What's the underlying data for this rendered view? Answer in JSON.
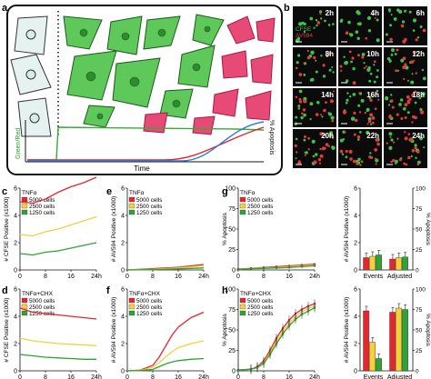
{
  "figure": {
    "panel_letters": {
      "a": "a",
      "b": "b",
      "c": "c",
      "d": "d",
      "e": "e",
      "f": "f",
      "g": "g",
      "h": "h"
    },
    "panel_a": {
      "y_left_label": "Green/Red",
      "y_right_label": "% Apoptosis",
      "x_label": "Time"
    },
    "panel_b": {
      "times": [
        "2h",
        "4h",
        "6h",
        "8h",
        "10h",
        "12h",
        "14h",
        "16h",
        "18h",
        "20h",
        "22h",
        "24h"
      ],
      "channel_labels": [
        "CFSE",
        "AV594"
      ]
    }
  },
  "chart_data": [
    {
      "id": "c",
      "type": "line",
      "treatment": "TNFα",
      "ylabel": "# CFSE Positive (x1000)",
      "xticks": [
        "0",
        "8",
        "16",
        "24h"
      ],
      "yticks": [
        "0",
        "2",
        "4",
        "6"
      ],
      "ylim": [
        0,
        6
      ],
      "xlim": [
        0,
        24
      ],
      "legend": [
        "5000 cells",
        "2500 cells",
        "1250 cells"
      ],
      "series": [
        {
          "name": "5000 cells",
          "color": "#e6262f",
          "points": [
            [
              0,
              5.0
            ],
            [
              4,
              4.9
            ],
            [
              8,
              5.2
            ],
            [
              12,
              5.7
            ],
            [
              16,
              6.1
            ],
            [
              20,
              6.4
            ],
            [
              24,
              6.8
            ]
          ]
        },
        {
          "name": "2500 cells",
          "color": "#f4d03a",
          "points": [
            [
              0,
              2.6
            ],
            [
              4,
              2.5
            ],
            [
              8,
              2.8
            ],
            [
              12,
              3.0
            ],
            [
              16,
              3.3
            ],
            [
              20,
              3.6
            ],
            [
              24,
              3.9
            ]
          ]
        },
        {
          "name": "1250 cells",
          "color": "#2fa336",
          "points": [
            [
              0,
              1.2
            ],
            [
              4,
              1.1
            ],
            [
              8,
              1.3
            ],
            [
              12,
              1.4
            ],
            [
              16,
              1.6
            ],
            [
              20,
              1.8
            ],
            [
              24,
              2.0
            ]
          ]
        }
      ]
    },
    {
      "id": "e",
      "type": "line",
      "treatment": "TNFα",
      "ylabel": "# AV594 Positive (x1000)",
      "xticks": [
        "0",
        "8",
        "16",
        "24h"
      ],
      "yticks": [
        "0",
        "2",
        "4",
        "6"
      ],
      "ylim": [
        0,
        6
      ],
      "xlim": [
        0,
        24
      ],
      "legend": [
        "5000 cells",
        "2500 cells",
        "1250 cells"
      ],
      "series": [
        {
          "name": "5000 cells",
          "color": "#e6262f",
          "points": [
            [
              0,
              0.0
            ],
            [
              8,
              0.1
            ],
            [
              16,
              0.2
            ],
            [
              24,
              0.4
            ]
          ]
        },
        {
          "name": "2500 cells",
          "color": "#f4d03a",
          "points": [
            [
              0,
              0.0
            ],
            [
              8,
              0.05
            ],
            [
              16,
              0.15
            ],
            [
              24,
              0.3
            ]
          ]
        },
        {
          "name": "1250 cells",
          "color": "#2fa336",
          "points": [
            [
              0,
              0.0
            ],
            [
              8,
              0.02
            ],
            [
              16,
              0.08
            ],
            [
              24,
              0.15
            ]
          ]
        }
      ]
    },
    {
      "id": "g",
      "type": "line",
      "treatment": "TNFα",
      "ylabel": "% Apoptosis",
      "xticks": [
        "0",
        "8",
        "16",
        "24h"
      ],
      "yticks": [
        "0",
        "25",
        "50",
        "75",
        "100"
      ],
      "ylim": [
        0,
        100
      ],
      "xlim": [
        0,
        24
      ],
      "legend": [
        "5000 cells",
        "2500 cells",
        "1250 cells"
      ],
      "series": [
        {
          "name": "5000 cells",
          "color": "#e6262f",
          "points": [
            [
              0,
              1
            ],
            [
              4,
              2
            ],
            [
              8,
              3
            ],
            [
              12,
              4
            ],
            [
              16,
              5
            ],
            [
              20,
              6
            ],
            [
              24,
              7
            ]
          ]
        },
        {
          "name": "2500 cells",
          "color": "#f4d03a",
          "points": [
            [
              0,
              1
            ],
            [
              4,
              2
            ],
            [
              8,
              2.5
            ],
            [
              12,
              3
            ],
            [
              16,
              4
            ],
            [
              20,
              5
            ],
            [
              24,
              6
            ]
          ]
        },
        {
          "name": "1250 cells",
          "color": "#2fa336",
          "points": [
            [
              0,
              1
            ],
            [
              4,
              1.5
            ],
            [
              8,
              2
            ],
            [
              12,
              2.5
            ],
            [
              16,
              3
            ],
            [
              20,
              4
            ],
            [
              24,
              5
            ]
          ]
        }
      ]
    },
    {
      "id": "g_bar",
      "type": "bar",
      "ylabel_left": "# AV594 Positive (x1000)",
      "ylabel_right": "% Apoptosis",
      "categories": [
        "Events",
        "Adjusted"
      ],
      "yticks_left": [
        "0",
        "2",
        "4",
        "6"
      ],
      "yticks_right": [
        "0",
        "25",
        "50",
        "75",
        "100"
      ],
      "ylim": [
        0,
        6
      ],
      "series": [
        {
          "name": "5000 cells",
          "color": "#e6262f",
          "values": [
            0.9,
            0.8
          ]
        },
        {
          "name": "2500 cells",
          "color": "#f4d03a",
          "values": [
            1.0,
            0.9
          ]
        },
        {
          "name": "1250 cells",
          "color": "#2fa336",
          "values": [
            1.1,
            0.95
          ]
        }
      ]
    },
    {
      "id": "d",
      "type": "line",
      "treatment": "TNFα+CHX",
      "ylabel": "# CFSE Positive (x1000)",
      "xticks": [
        "0",
        "8",
        "16",
        "24h"
      ],
      "yticks": [
        "0",
        "2",
        "4",
        "6"
      ],
      "ylim": [
        0,
        6
      ],
      "xlim": [
        0,
        24
      ],
      "legend": [
        "5000 cells",
        "2500 cells",
        "1250 cells"
      ],
      "series": [
        {
          "name": "5000 cells",
          "color": "#e6262f",
          "points": [
            [
              0,
              4.6
            ],
            [
              4,
              4.3
            ],
            [
              8,
              4.2
            ],
            [
              12,
              4.1
            ],
            [
              16,
              4.0
            ],
            [
              20,
              3.9
            ],
            [
              24,
              3.8
            ]
          ]
        },
        {
          "name": "2500 cells",
          "color": "#f4d03a",
          "points": [
            [
              0,
              2.4
            ],
            [
              4,
              2.2
            ],
            [
              8,
              2.1
            ],
            [
              12,
              2.0
            ],
            [
              16,
              1.95
            ],
            [
              20,
              1.9
            ],
            [
              24,
              1.85
            ]
          ]
        },
        {
          "name": "1250 cells",
          "color": "#2fa336",
          "points": [
            [
              0,
              1.2
            ],
            [
              4,
              1.1
            ],
            [
              8,
              1.0
            ],
            [
              12,
              0.95
            ],
            [
              16,
              0.9
            ],
            [
              20,
              0.85
            ],
            [
              24,
              0.85
            ]
          ]
        }
      ]
    },
    {
      "id": "f",
      "type": "line",
      "treatment": "TNFα+CHX",
      "ylabel": "# AV594 Positive (x1000)",
      "xticks": [
        "0",
        "8",
        "16",
        "24h"
      ],
      "yticks": [
        "0",
        "2",
        "4",
        "6"
      ],
      "ylim": [
        0,
        6
      ],
      "xlim": [
        0,
        24
      ],
      "legend": [
        "5000 cells",
        "2500 cells",
        "1250 cells"
      ],
      "series": [
        {
          "name": "5000 cells",
          "color": "#e6262f",
          "points": [
            [
              0,
              0.0
            ],
            [
              4,
              0.05
            ],
            [
              8,
              0.4
            ],
            [
              10,
              1.0
            ],
            [
              12,
              1.8
            ],
            [
              14,
              2.6
            ],
            [
              16,
              3.2
            ],
            [
              20,
              3.9
            ],
            [
              24,
              4.3
            ]
          ]
        },
        {
          "name": "2500 cells",
          "color": "#f4d03a",
          "points": [
            [
              0,
              0.0
            ],
            [
              4,
              0.03
            ],
            [
              8,
              0.25
            ],
            [
              10,
              0.6
            ],
            [
              12,
              1.0
            ],
            [
              14,
              1.4
            ],
            [
              16,
              1.7
            ],
            [
              20,
              2.0
            ],
            [
              24,
              2.2
            ]
          ]
        },
        {
          "name": "1250 cells",
          "color": "#2fa336",
          "points": [
            [
              0,
              0.0
            ],
            [
              4,
              0.02
            ],
            [
              8,
              0.1
            ],
            [
              10,
              0.3
            ],
            [
              12,
              0.5
            ],
            [
              14,
              0.65
            ],
            [
              16,
              0.75
            ],
            [
              20,
              0.85
            ],
            [
              24,
              0.9
            ]
          ]
        }
      ]
    },
    {
      "id": "h",
      "type": "line",
      "treatment": "TNFα+CHX",
      "ylabel": "% Apoptosis",
      "xticks": [
        "0",
        "8",
        "16",
        "24h"
      ],
      "yticks": [
        "0",
        "25",
        "50",
        "75",
        "100"
      ],
      "ylim": [
        0,
        100
      ],
      "xlim": [
        0,
        24
      ],
      "legend": [
        "5000 cells",
        "2500 cells",
        "1250 cells"
      ],
      "series": [
        {
          "name": "5000 cells",
          "color": "#e6262f",
          "points": [
            [
              0,
              1
            ],
            [
              4,
              2
            ],
            [
              6,
              5
            ],
            [
              8,
              12
            ],
            [
              10,
              25
            ],
            [
              12,
              40
            ],
            [
              14,
              52
            ],
            [
              16,
              62
            ],
            [
              18,
              70
            ],
            [
              20,
              75
            ],
            [
              22,
              79
            ],
            [
              24,
              82
            ]
          ]
        },
        {
          "name": "2500 cells",
          "color": "#f4d03a",
          "points": [
            [
              0,
              1
            ],
            [
              4,
              2
            ],
            [
              6,
              4
            ],
            [
              8,
              10
            ],
            [
              10,
              22
            ],
            [
              12,
              36
            ],
            [
              14,
              48
            ],
            [
              16,
              58
            ],
            [
              18,
              66
            ],
            [
              20,
              72
            ],
            [
              22,
              76
            ],
            [
              24,
              79
            ]
          ]
        },
        {
          "name": "1250 cells",
          "color": "#2fa336",
          "points": [
            [
              0,
              1
            ],
            [
              4,
              2
            ],
            [
              6,
              4
            ],
            [
              8,
              9
            ],
            [
              10,
              20
            ],
            [
              12,
              33
            ],
            [
              14,
              45
            ],
            [
              16,
              55
            ],
            [
              18,
              63
            ],
            [
              20,
              69
            ],
            [
              22,
              73
            ],
            [
              24,
              77
            ]
          ]
        }
      ]
    },
    {
      "id": "h_bar",
      "type": "bar",
      "ylabel_left": "# AV594 Positive (x1000)",
      "ylabel_right": "% Apoptosis",
      "categories": [
        "Events",
        "Adjusted"
      ],
      "yticks_left": [
        "0",
        "2",
        "4",
        "6"
      ],
      "yticks_right": [
        "0",
        "25",
        "50",
        "75",
        "100"
      ],
      "ylim": [
        0,
        6
      ],
      "series": [
        {
          "name": "5000 cells",
          "color": "#e6262f",
          "values": [
            4.4,
            4.3
          ]
        },
        {
          "name": "2500 cells",
          "color": "#f4d03a",
          "values": [
            2.1,
            4.6
          ]
        },
        {
          "name": "1250 cells",
          "color": "#2fa336",
          "values": [
            0.9,
            4.5
          ]
        }
      ]
    }
  ]
}
